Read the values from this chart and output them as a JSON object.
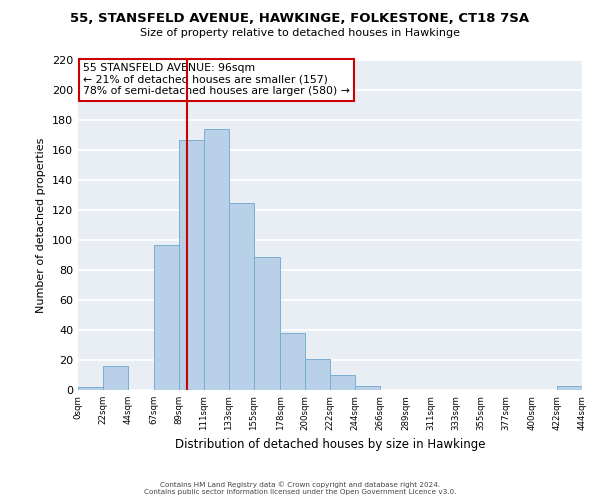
{
  "title": "55, STANSFELD AVENUE, HAWKINGE, FOLKESTONE, CT18 7SA",
  "subtitle": "Size of property relative to detached houses in Hawkinge",
  "xlabel": "Distribution of detached houses by size in Hawkinge",
  "ylabel": "Number of detached properties",
  "bar_color": "#b8d0e8",
  "bar_edge_color": "#7aaed0",
  "bin_edges": [
    0,
    22,
    44,
    67,
    89,
    111,
    133,
    155,
    178,
    200,
    222,
    244,
    266,
    289,
    311,
    333,
    355,
    377,
    400,
    422,
    444
  ],
  "bar_heights": [
    2,
    16,
    0,
    97,
    167,
    174,
    125,
    89,
    38,
    21,
    10,
    3,
    0,
    0,
    0,
    0,
    0,
    0,
    0,
    3
  ],
  "tick_labels": [
    "0sqm",
    "22sqm",
    "44sqm",
    "67sqm",
    "89sqm",
    "111sqm",
    "133sqm",
    "155sqm",
    "178sqm",
    "200sqm",
    "222sqm",
    "244sqm",
    "266sqm",
    "289sqm",
    "311sqm",
    "333sqm",
    "355sqm",
    "377sqm",
    "400sqm",
    "422sqm",
    "444sqm"
  ],
  "ylim": [
    0,
    220
  ],
  "yticks": [
    0,
    20,
    40,
    60,
    80,
    100,
    120,
    140,
    160,
    180,
    200,
    220
  ],
  "property_line_x": 96,
  "property_line_color": "#cc0000",
  "annotation_title": "55 STANSFELD AVENUE: 96sqm",
  "annotation_line1": "← 21% of detached houses are smaller (157)",
  "annotation_line2": "78% of semi-detached houses are larger (580) →",
  "footer_line1": "Contains HM Land Registry data © Crown copyright and database right 2024.",
  "footer_line2": "Contains public sector information licensed under the Open Government Licence v3.0.",
  "background_color": "#e8eef4",
  "grid_color": "#ffffff",
  "fig_bg_color": "#ffffff"
}
